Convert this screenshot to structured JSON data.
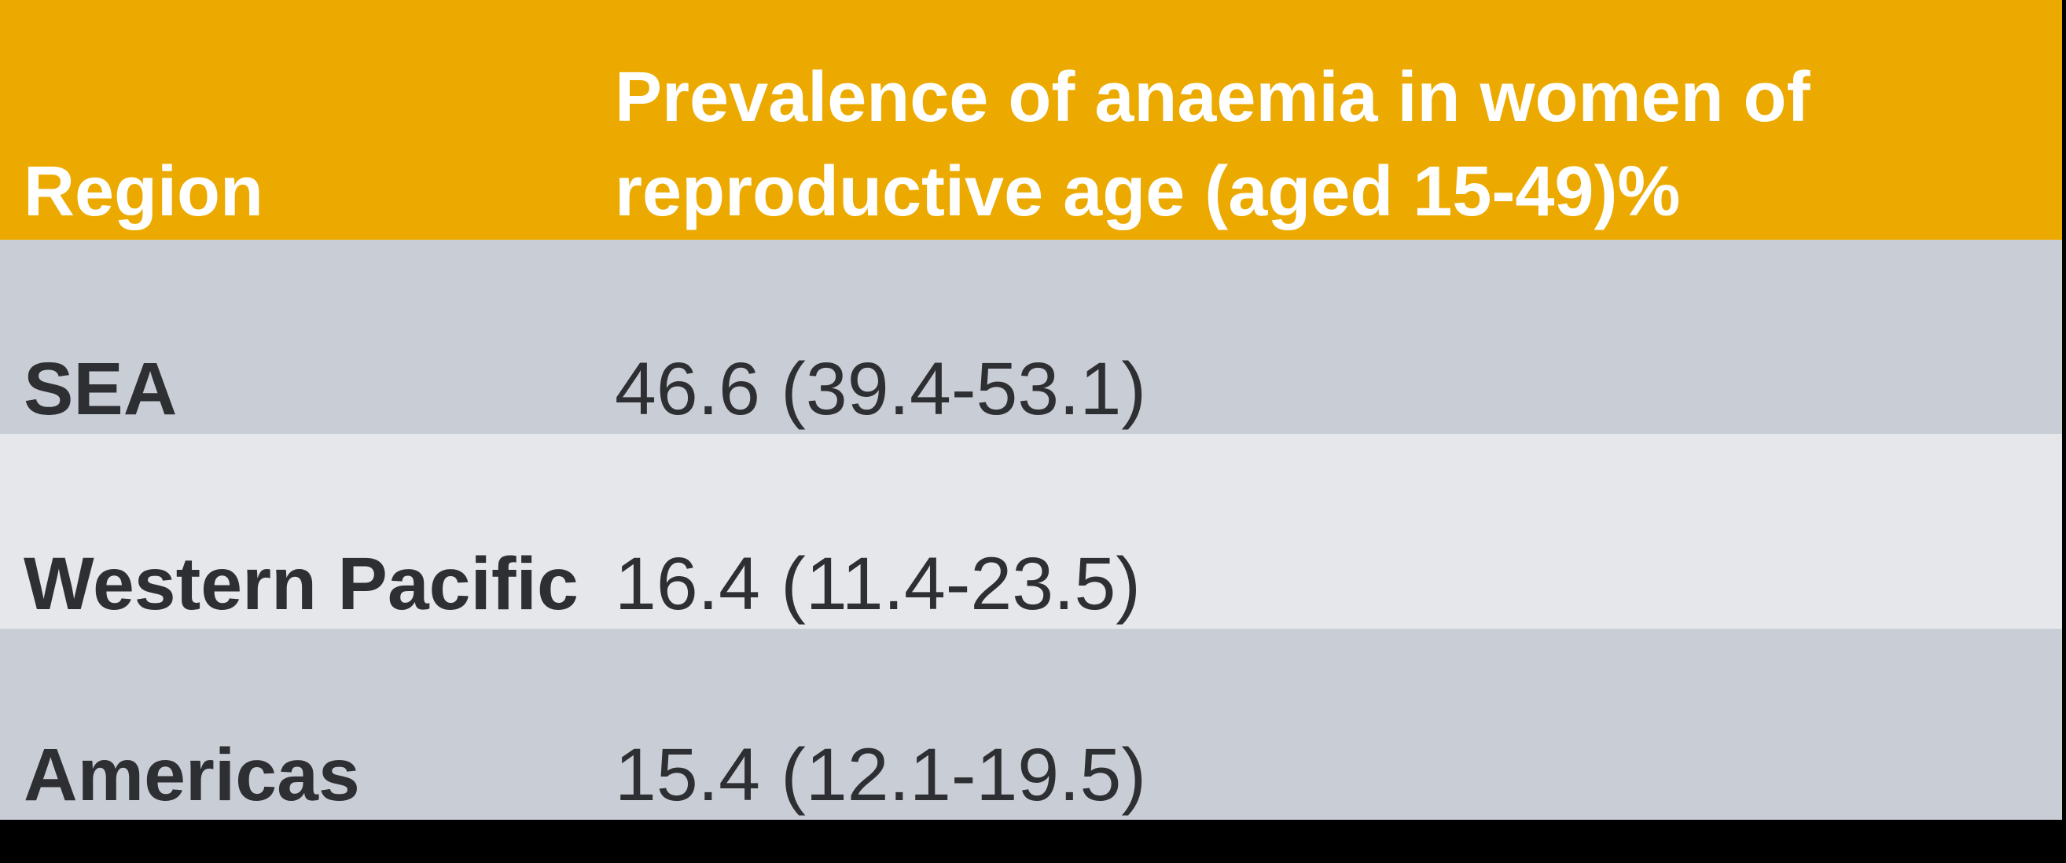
{
  "meta": {
    "description": "Table of anaemia prevalence in women of reproductive age by WHO region"
  },
  "colors": {
    "header_bg": "#ECAA00",
    "header_text": "#FFFFFF",
    "row_alt_dark": "#C9CDD6",
    "row_alt_light": "#E5E7EB",
    "body_text": "#2E2F32",
    "frame_black": "#000000"
  },
  "table": {
    "columns": [
      {
        "label": "Region"
      },
      {
        "label": "Prevalence of anaemia in women of\nreproductive age (aged 15-49)%"
      }
    ],
    "rows": [
      {
        "region": "SEA",
        "value": "46.6 (39.4-53.1)"
      },
      {
        "region": "Western Pacific",
        "value": "16.4 (11.4-23.5)"
      },
      {
        "region": "Americas",
        "value": "15.4 (12.1-19.5)"
      }
    ]
  },
  "chart_data": {
    "type": "table",
    "title": "Prevalence of anaemia in women of reproductive age (aged 15-49)%",
    "columns": [
      "Region",
      "Prevalence of anaemia in women of reproductive age (aged 15-49)%"
    ],
    "rows": [
      [
        "SEA",
        "46.6 (39.4-53.1)"
      ],
      [
        "Western Pacific",
        "16.4 (11.4-23.5)"
      ],
      [
        "Americas",
        "15.4 (12.1-19.5)"
      ]
    ],
    "series": [
      {
        "name": "Prevalence %",
        "categories": [
          "SEA",
          "Western Pacific",
          "Americas"
        ],
        "values": [
          46.6,
          16.4,
          15.4
        ]
      },
      {
        "name": "Interval lower bound",
        "categories": [
          "SEA",
          "Western Pacific",
          "Americas"
        ],
        "values": [
          39.4,
          11.4,
          12.1
        ]
      },
      {
        "name": "Interval upper bound",
        "categories": [
          "SEA",
          "Western Pacific",
          "Americas"
        ],
        "values": [
          53.1,
          23.5,
          19.5
        ]
      }
    ]
  }
}
